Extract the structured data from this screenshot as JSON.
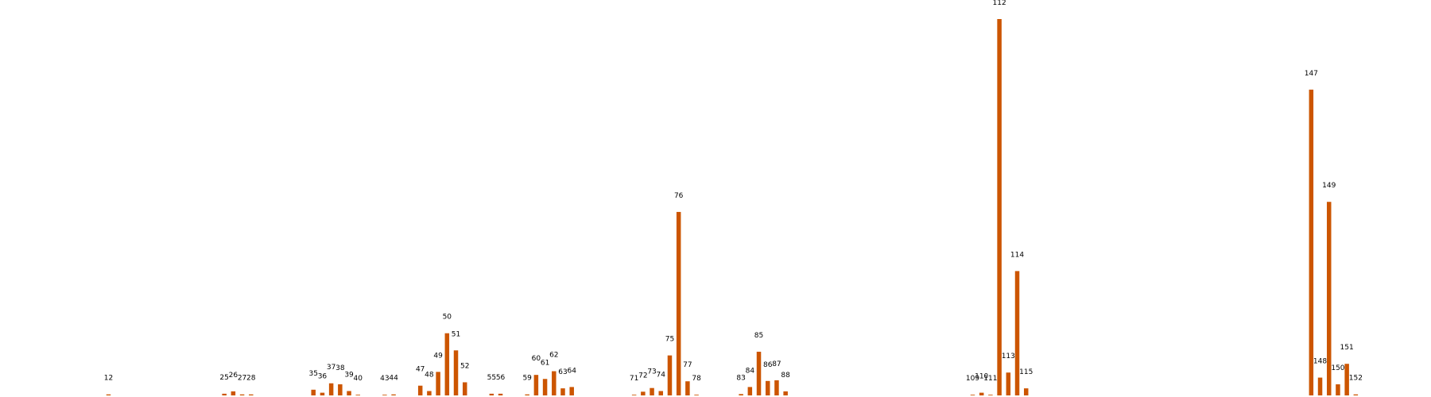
{
  "colors": {
    "bar": "#cc5500",
    "label": "#000000",
    "background": "#ffffff"
  },
  "chart_data": {
    "type": "bar",
    "title": "",
    "xlabel": "",
    "ylabel": "",
    "axes_visible": false,
    "grid": false,
    "legend": "none",
    "ylim": [
      0,
      112
    ],
    "xlim": [
      0,
      160
    ],
    "points": [
      {
        "x": 12,
        "y": 0.3
      },
      {
        "x": 25,
        "y": 0.5
      },
      {
        "x": 26,
        "y": 1.2
      },
      {
        "x": 27,
        "y": 0.3
      },
      {
        "x": 28,
        "y": 0.3
      },
      {
        "x": 35,
        "y": 1.7
      },
      {
        "x": 36,
        "y": 0.8
      },
      {
        "x": 37,
        "y": 3.6
      },
      {
        "x": 38,
        "y": 3.3
      },
      {
        "x": 39,
        "y": 1.3
      },
      {
        "x": 40,
        "y": 0.2
      },
      {
        "x": 43,
        "y": 0.2
      },
      {
        "x": 44,
        "y": 0.3
      },
      {
        "x": 47,
        "y": 2.9
      },
      {
        "x": 48,
        "y": 1.3
      },
      {
        "x": 49,
        "y": 7.0
      },
      {
        "x": 50,
        "y": 18.5
      },
      {
        "x": 51,
        "y": 13.4
      },
      {
        "x": 52,
        "y": 3.9
      },
      {
        "x": 55,
        "y": 0.5
      },
      {
        "x": 56,
        "y": 0.5
      },
      {
        "x": 59,
        "y": 0.3
      },
      {
        "x": 60,
        "y": 6.1
      },
      {
        "x": 61,
        "y": 4.9
      },
      {
        "x": 62,
        "y": 7.2
      },
      {
        "x": 63,
        "y": 2.1
      },
      {
        "x": 64,
        "y": 2.5
      },
      {
        "x": 71,
        "y": 0.2
      },
      {
        "x": 72,
        "y": 1.1
      },
      {
        "x": 73,
        "y": 2.2
      },
      {
        "x": 74,
        "y": 1.3
      },
      {
        "x": 75,
        "y": 11.9
      },
      {
        "x": 76,
        "y": 54.6
      },
      {
        "x": 77,
        "y": 4.2
      },
      {
        "x": 78,
        "y": 0.2
      },
      {
        "x": 83,
        "y": 0.4
      },
      {
        "x": 84,
        "y": 2.5
      },
      {
        "x": 85,
        "y": 13.0
      },
      {
        "x": 86,
        "y": 4.3
      },
      {
        "x": 87,
        "y": 4.5
      },
      {
        "x": 88,
        "y": 1.2
      },
      {
        "x": 109,
        "y": 0.2
      },
      {
        "x": 110,
        "y": 0.8
      },
      {
        "x": 111,
        "y": 0.2
      },
      {
        "x": 112,
        "y": 112.0
      },
      {
        "x": 113,
        "y": 6.8
      },
      {
        "x": 114,
        "y": 37.0
      },
      {
        "x": 115,
        "y": 2.1
      },
      {
        "x": 147,
        "y": 91.0
      },
      {
        "x": 148,
        "y": 5.3
      },
      {
        "x": 149,
        "y": 57.6
      },
      {
        "x": 150,
        "y": 3.3
      },
      {
        "x": 151,
        "y": 9.4
      },
      {
        "x": 152,
        "y": 0.3
      }
    ]
  }
}
